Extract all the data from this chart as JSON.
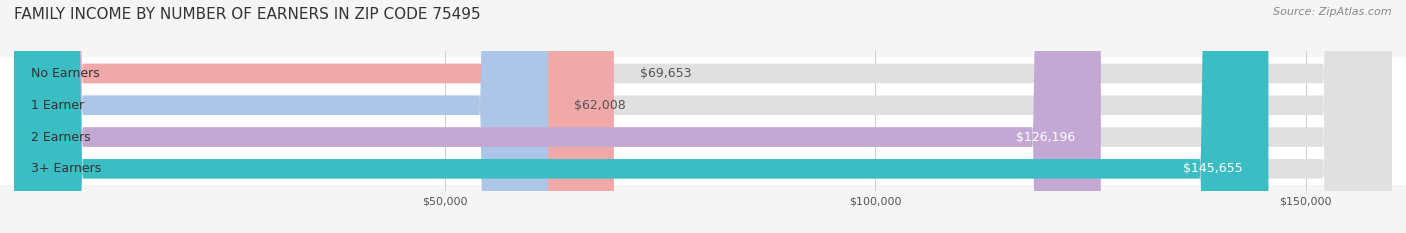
{
  "title": "FAMILY INCOME BY NUMBER OF EARNERS IN ZIP CODE 75495",
  "source": "Source: ZipAtlas.com",
  "categories": [
    "No Earners",
    "1 Earner",
    "2 Earners",
    "3+ Earners"
  ],
  "values": [
    69653,
    62008,
    126196,
    145655
  ],
  "bar_colors": [
    "#f0a8a8",
    "#adc6e8",
    "#c4a8d4",
    "#3bbdc4"
  ],
  "label_colors": [
    "#555555",
    "#555555",
    "#ffffff",
    "#ffffff"
  ],
  "bg_color": "#f0f0f0",
  "bar_bg_color": "#e8e8e8",
  "xlim_min": 0,
  "xlim_max": 160000,
  "x_ticks": [
    50000,
    100000,
    150000
  ],
  "x_tick_labels": [
    "$50,000",
    "$100,000",
    "$150,000"
  ],
  "title_fontsize": 11,
  "source_fontsize": 8,
  "label_fontsize": 9,
  "category_fontsize": 9,
  "value_label_fontsize": 9,
  "bar_height": 0.6,
  "row_bg_colors": [
    "#f8f8f8",
    "#f8f8f8",
    "#f8f8f8",
    "#f8f8f8"
  ]
}
